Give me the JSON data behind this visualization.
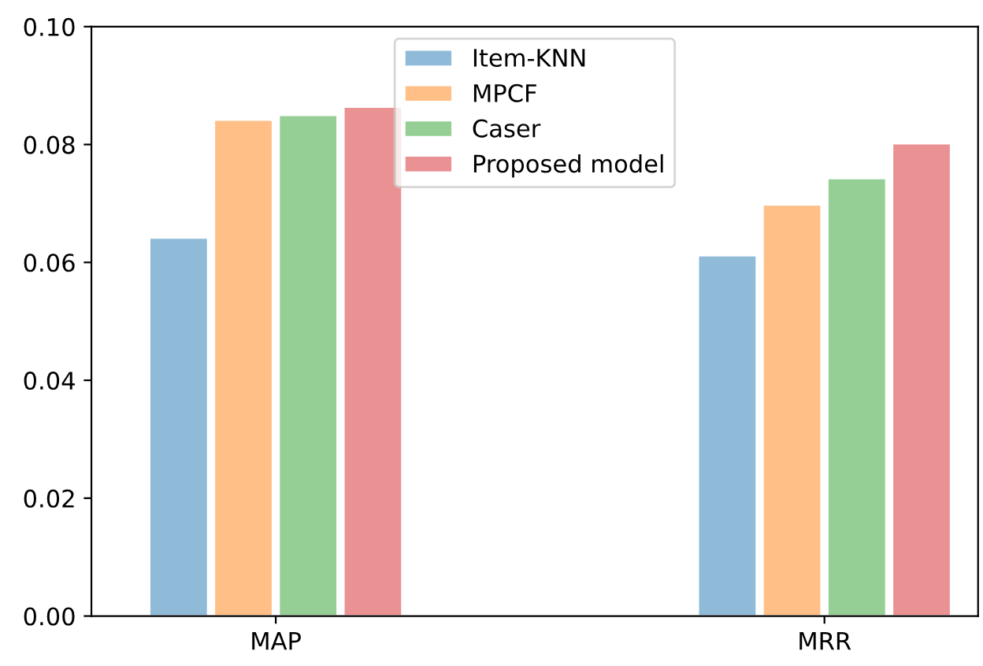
{
  "chart_data": {
    "type": "bar",
    "categories": [
      "MAP",
      "MRR"
    ],
    "series": [
      {
        "name": "Item-KNN",
        "color": "#8fbbd9",
        "values": [
          0.0642,
          0.0612
        ]
      },
      {
        "name": "MPCF",
        "color": "#ffbf86",
        "values": [
          0.0842,
          0.0698
        ]
      },
      {
        "name": "Caser",
        "color": "#95cf95",
        "values": [
          0.085,
          0.0743
        ]
      },
      {
        "name": "Proposed model",
        "color": "#ea9293",
        "values": [
          0.0864,
          0.0802
        ]
      }
    ],
    "ylim": [
      0,
      0.1
    ],
    "yticks": [
      {
        "value": 0,
        "label": "0.00"
      },
      {
        "value": 0.02,
        "label": "0.02"
      },
      {
        "value": 0.04,
        "label": "0.04"
      },
      {
        "value": 0.06,
        "label": "0.06"
      },
      {
        "value": 0.08,
        "label": "0.08"
      },
      {
        "value": 0.1,
        "label": "0.10"
      }
    ],
    "legend": "top center",
    "grid": false
  }
}
